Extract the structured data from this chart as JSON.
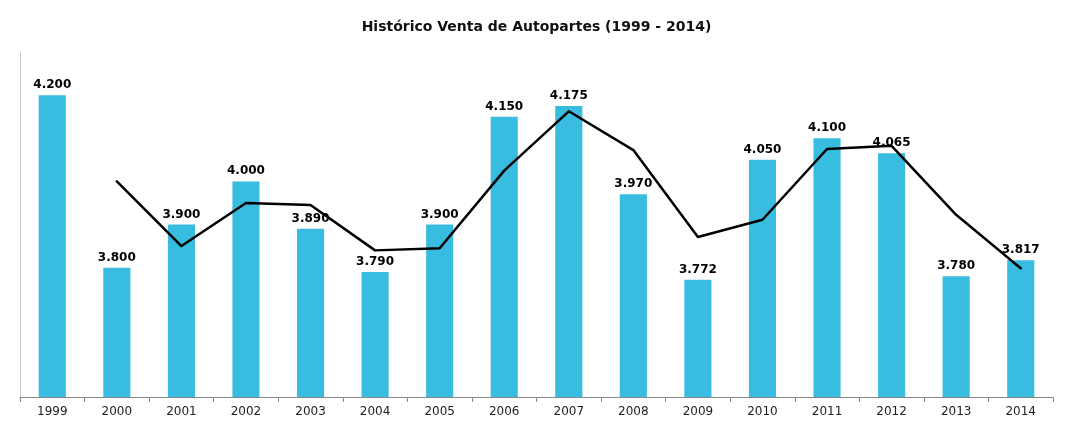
{
  "chart_data": {
    "type": "bar",
    "title": "Histórico Venta de Autopartes (1999 - 2014)",
    "categories": [
      "1999",
      "2000",
      "2001",
      "2002",
      "2003",
      "2004",
      "2005",
      "2006",
      "2007",
      "2008",
      "2009",
      "2010",
      "2011",
      "2012",
      "2013",
      "2014"
    ],
    "series": [
      {
        "color": "#38bcdf",
        "values": [
          4200,
          3800,
          3900,
          4000,
          3890,
          3790,
          3900,
          4150,
          4175,
          3970,
          3772,
          4050,
          4100,
          4065,
          3780,
          3817
        ],
        "value_labels": [
          "4.200",
          "3.800",
          "3.900",
          "4.000",
          "3.890",
          "3.790",
          "3.900",
          "4.150",
          "4.175",
          "3.970",
          "3.772",
          "4.050",
          "4.100",
          "4.065",
          "3.780",
          "3.817"
        ]
      },
      {
        "type": "line",
        "color": "#000000",
        "values": [
          null,
          4000,
          3850,
          3950,
          3945,
          3840,
          3845,
          4025,
          4162.5,
          4072.5,
          3871,
          3911,
          4075,
          4082.5,
          3922.5,
          3798.5
        ]
      }
    ],
    "ylim": [
      3500,
      4300
    ],
    "grid": false,
    "marker": "none",
    "line_style": "solid"
  }
}
